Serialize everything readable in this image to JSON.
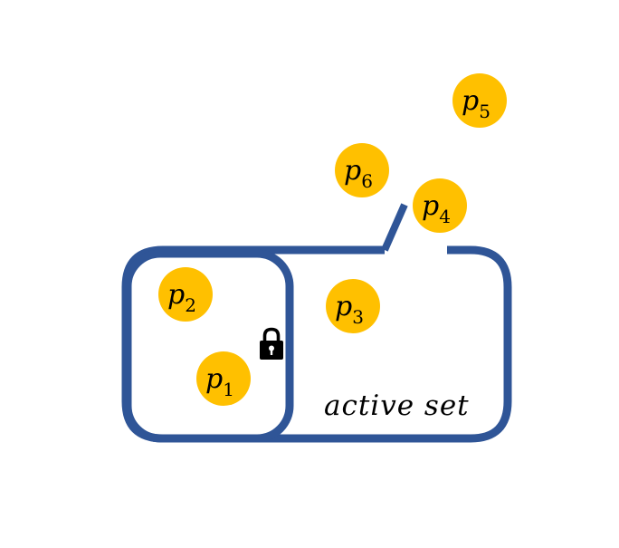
{
  "colors": {
    "outline": "#2F5597",
    "node_fill": "#FFC000",
    "lock": "#000000",
    "background": "#FFFFFF"
  },
  "set_label": "active set",
  "lock_icon": "lock-icon",
  "nodes": [
    {
      "id": "p1",
      "letter": "p",
      "sub": "1",
      "in_set": true,
      "locked": true
    },
    {
      "id": "p2",
      "letter": "p",
      "sub": "2",
      "in_set": true,
      "locked": true
    },
    {
      "id": "p3",
      "letter": "p",
      "sub": "3",
      "in_set": true,
      "locked": false
    },
    {
      "id": "p4",
      "letter": "p",
      "sub": "4",
      "in_set": false,
      "locked": false
    },
    {
      "id": "p5",
      "letter": "p",
      "sub": "5",
      "in_set": false,
      "locked": false
    },
    {
      "id": "p6",
      "letter": "p",
      "sub": "6",
      "in_set": false,
      "locked": false
    }
  ]
}
